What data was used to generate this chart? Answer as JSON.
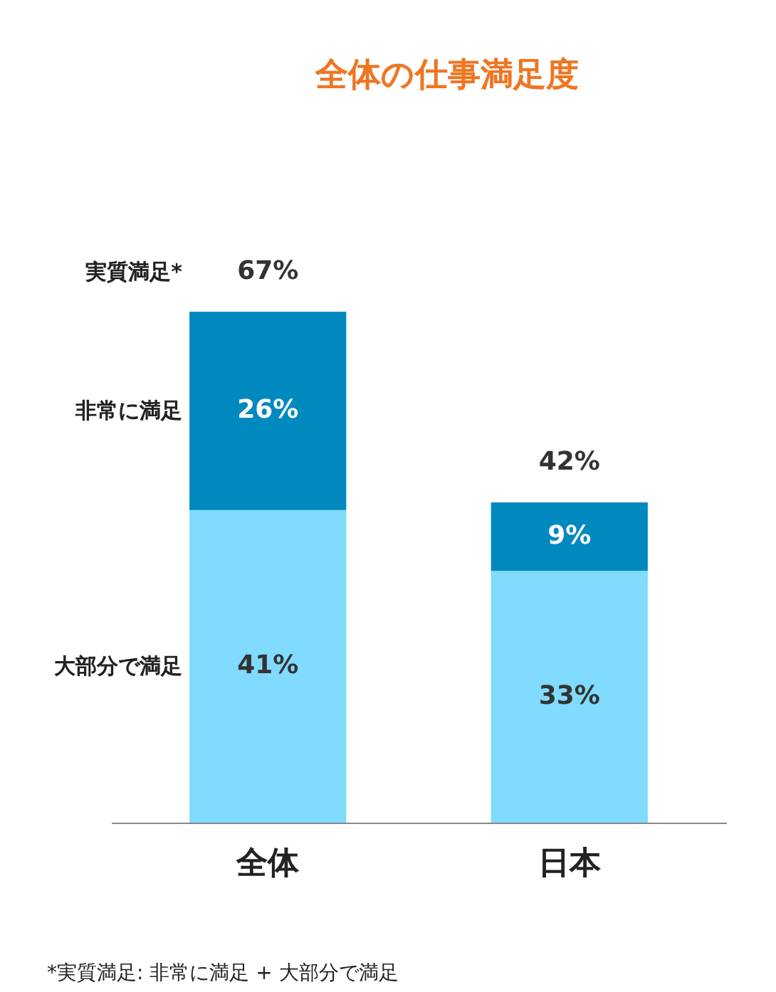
{
  "chart_data": {
    "type": "bar",
    "title": "全体の仕事満足度",
    "categories": [
      "全体",
      "日本"
    ],
    "stacked": true,
    "series": [
      {
        "name": "大部分で満足",
        "color": "#80dbff",
        "values": [
          41,
          33
        ],
        "value_labels": [
          "41%",
          "33%"
        ]
      },
      {
        "name": "非常に満足",
        "color": "#0089bf",
        "values": [
          26,
          9
        ],
        "value_labels": [
          "26%",
          "9%"
        ]
      }
    ],
    "totals": [
      "67%",
      "42%"
    ],
    "annotations": [
      "実質満足*",
      "*実質満足: 非常に満足 + 大部分で満足"
    ],
    "grid": false
  }
}
